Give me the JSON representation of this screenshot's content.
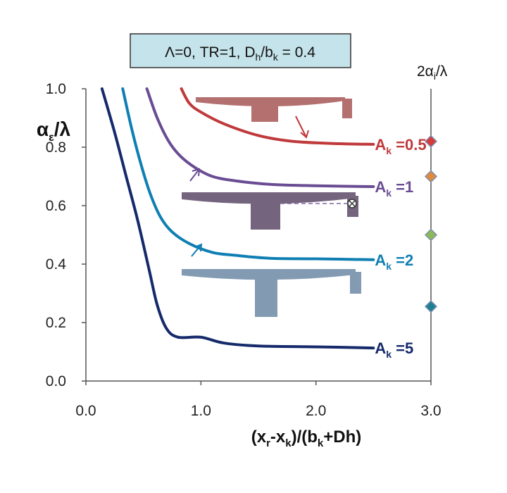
{
  "chart_data": {
    "type": "line",
    "condition_box": {
      "lambda": "Λ=0, ",
      "tr": "TR=1, ",
      "d": "D",
      "h": "h",
      "slash": "/b",
      "k": "k",
      "value": " = 0.4"
    },
    "xlabel": {
      "open": "(x",
      "r": "r",
      "minus": "-x",
      "k": "k",
      "close": ")/(b",
      "k2": "k",
      "tail": "+Dh)"
    },
    "ylabel": {
      "alpha": "α",
      "eps": "ε",
      "tail": "/λ"
    },
    "right_label": {
      "pre": "2α",
      "i": "i",
      "post": "/λ"
    },
    "xlim": [
      0,
      3
    ],
    "ylim": [
      0,
      1
    ],
    "x_ticks": [
      "0.0",
      "1.0",
      "2.0",
      "3.0"
    ],
    "y_ticks": [
      "0.0",
      "0.2",
      "0.4",
      "0.6",
      "0.8",
      "1.0"
    ],
    "grid": false,
    "series": [
      {
        "name": "A_k =5",
        "label_parts": {
          "a": "A",
          "k": "k",
          "rest": " =5"
        },
        "color": "#152a6b",
        "x": [
          0.14,
          0.25,
          0.35,
          0.45,
          0.55,
          0.62,
          0.7,
          0.8,
          1.0,
          1.2,
          1.5,
          2.0,
          2.5
        ],
        "y": [
          1.0,
          0.85,
          0.7,
          0.55,
          0.38,
          0.26,
          0.18,
          0.15,
          0.15,
          0.13,
          0.12,
          0.117,
          0.113
        ]
      },
      {
        "name": "A_k =2",
        "label_parts": {
          "a": "A",
          "k": "k",
          "rest": " =2"
        },
        "color": "#0f7fb3",
        "x": [
          0.32,
          0.4,
          0.48,
          0.56,
          0.65,
          0.75,
          0.9,
          1.1,
          1.3,
          1.6,
          2.0,
          2.5
        ],
        "y": [
          1.0,
          0.86,
          0.74,
          0.64,
          0.56,
          0.51,
          0.47,
          0.44,
          0.43,
          0.42,
          0.418,
          0.415
        ]
      },
      {
        "name": "A_k =1",
        "label_parts": {
          "a": "A",
          "k": "k",
          "rest": " =1"
        },
        "color": "#6a4c93",
        "x": [
          0.53,
          0.62,
          0.72,
          0.82,
          0.95,
          1.1,
          1.3,
          1.6,
          2.0,
          2.5
        ],
        "y": [
          1.0,
          0.9,
          0.82,
          0.77,
          0.73,
          0.7,
          0.685,
          0.673,
          0.668,
          0.665
        ]
      },
      {
        "name": "A_k =0.5",
        "label_parts": {
          "a": "A",
          "k": "k",
          "rest": " =0.5"
        },
        "color": "#c0393b",
        "x": [
          0.83,
          0.9,
          1.0,
          1.2,
          1.5,
          1.8,
          2.2,
          2.5
        ],
        "y": [
          1.0,
          0.95,
          0.92,
          0.88,
          0.84,
          0.82,
          0.812,
          0.81
        ]
      }
    ],
    "right_axis_markers": [
      {
        "y": 0.82,
        "color": "#d63a3a"
      },
      {
        "y": 0.7,
        "color": "#e08a3c"
      },
      {
        "y": 0.5,
        "color": "#8db85a"
      },
      {
        "y": 0.255,
        "color": "#1e7f93"
      }
    ]
  }
}
